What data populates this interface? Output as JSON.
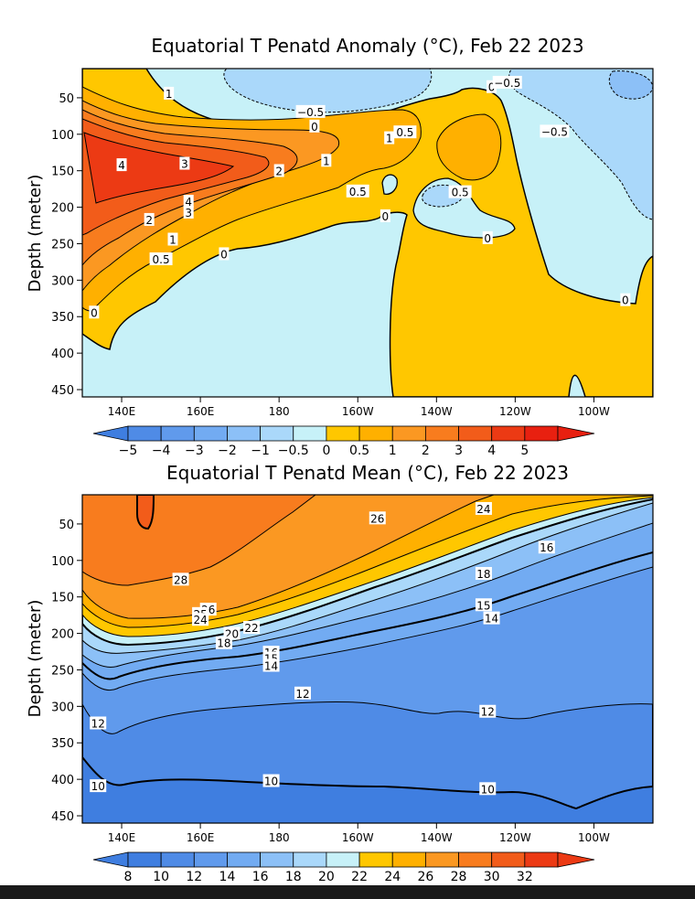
{
  "chart_data": [
    {
      "type": "heatmap",
      "title": "Equatorial T Penatd Anomaly (°C), Feb 22 2023",
      "xlabel": "",
      "ylabel": "Depth (meter)",
      "x_ticks": [
        "140E",
        "160E",
        "180",
        "160W",
        "140W",
        "120W",
        "100W"
      ],
      "y_ticks": [
        "50",
        "100",
        "150",
        "200",
        "250",
        "300",
        "350",
        "400",
        "450"
      ],
      "ylim": [
        460,
        10
      ],
      "colorbar": {
        "labels": [
          "−5",
          "−4",
          "−3",
          "−2",
          "−1",
          "−0.5",
          "0",
          "0.5",
          "1",
          "2",
          "3",
          "4",
          "5"
        ],
        "colors": [
          "#3f7ee0",
          "#4f8be6",
          "#609aec",
          "#72abf2",
          "#8cc0f7",
          "#aad8fa",
          "#c7f1f8",
          "#ffc700",
          "#ffb000",
          "#fb9822",
          "#f87c1e",
          "#f25c1a",
          "#ec3a14",
          "#e82010"
        ]
      },
      "contour_labels": [
        {
          "value": "1",
          "x": "152E",
          "depth": 45
        },
        {
          "value": "−0.5",
          "x": "172W",
          "depth": 70
        },
        {
          "value": "0",
          "x": "171W",
          "depth": 90
        },
        {
          "value": "0",
          "x": "126W",
          "depth": 36
        },
        {
          "value": "−0.5",
          "x": "122W",
          "depth": 30
        },
        {
          "value": "−0.5",
          "x": "110W",
          "depth": 97
        },
        {
          "value": "4",
          "x": "140E",
          "depth": 143
        },
        {
          "value": "3",
          "x": "156E",
          "depth": 141
        },
        {
          "value": "2",
          "x": "180",
          "depth": 151
        },
        {
          "value": "1",
          "x": "168W",
          "depth": 137
        },
        {
          "value": "1",
          "x": "152W",
          "depth": 106
        },
        {
          "value": "0.5",
          "x": "148W",
          "depth": 98
        },
        {
          "value": "0.5",
          "x": "160W",
          "depth": 179
        },
        {
          "value": "0.5",
          "x": "134W",
          "depth": 180
        },
        {
          "value": "4",
          "x": "157E",
          "depth": 193
        },
        {
          "value": "3",
          "x": "157E",
          "depth": 208
        },
        {
          "value": "2",
          "x": "147E",
          "depth": 218
        },
        {
          "value": "1",
          "x": "153E",
          "depth": 245
        },
        {
          "value": "0.5",
          "x": "150E",
          "depth": 272
        },
        {
          "value": "0",
          "x": "166E",
          "depth": 265
        },
        {
          "value": "0",
          "x": "153W",
          "depth": 213
        },
        {
          "value": "0",
          "x": "127W",
          "depth": 243
        },
        {
          "value": "0",
          "x": "133E",
          "depth": 345
        },
        {
          "value": "0",
          "x": "92W",
          "depth": 328
        }
      ]
    },
    {
      "type": "heatmap",
      "title": "Equatorial T Penatd Mean (°C), Feb 22 2023",
      "xlabel": "",
      "ylabel": "Depth (meter)",
      "x_ticks": [
        "140E",
        "160E",
        "180",
        "160W",
        "140W",
        "120W",
        "100W"
      ],
      "y_ticks": [
        "50",
        "100",
        "150",
        "200",
        "250",
        "300",
        "350",
        "400",
        "450"
      ],
      "ylim": [
        460,
        10
      ],
      "colorbar": {
        "labels": [
          "8",
          "10",
          "12",
          "14",
          "16",
          "18",
          "20",
          "22",
          "24",
          "26",
          "28",
          "30",
          "32"
        ],
        "colors": [
          "#3f7ee0",
          "#3f7ee0",
          "#4f8be6",
          "#609aec",
          "#72abf2",
          "#8cc0f7",
          "#aad8fa",
          "#c7f1f8",
          "#ffc700",
          "#ffb000",
          "#fb9822",
          "#f87c1e",
          "#f25c1a",
          "#ec3a14"
        ]
      },
      "contour_labels": [
        {
          "value": "26",
          "x": "155W",
          "depth": 43
        },
        {
          "value": "24",
          "x": "128W",
          "depth": 30
        },
        {
          "value": "16",
          "x": "112W",
          "depth": 83
        },
        {
          "value": "28",
          "x": "155E",
          "depth": 127
        },
        {
          "value": "18",
          "x": "128W",
          "depth": 119
        },
        {
          "value": "15",
          "x": "128W",
          "depth": 162
        },
        {
          "value": "14",
          "x": "126W",
          "depth": 180
        },
        {
          "value": "26",
          "x": "162E",
          "depth": 168
        },
        {
          "value": "25",
          "x": "160E",
          "depth": 174
        },
        {
          "value": "24",
          "x": "160E",
          "depth": 182
        },
        {
          "value": "22",
          "x": "173E",
          "depth": 193
        },
        {
          "value": "20",
          "x": "168E",
          "depth": 201
        },
        {
          "value": "18",
          "x": "166E",
          "depth": 214
        },
        {
          "value": "16",
          "x": "178E",
          "depth": 227
        },
        {
          "value": "15",
          "x": "178E",
          "depth": 235
        },
        {
          "value": "14",
          "x": "178E",
          "depth": 245
        },
        {
          "value": "12",
          "x": "174W",
          "depth": 283
        },
        {
          "value": "12",
          "x": "127W",
          "depth": 308
        },
        {
          "value": "12",
          "x": "134E",
          "depth": 324
        },
        {
          "value": "10",
          "x": "134E",
          "depth": 410
        },
        {
          "value": "10",
          "x": "178E",
          "depth": 403
        },
        {
          "value": "10",
          "x": "127W",
          "depth": 414
        }
      ]
    }
  ]
}
